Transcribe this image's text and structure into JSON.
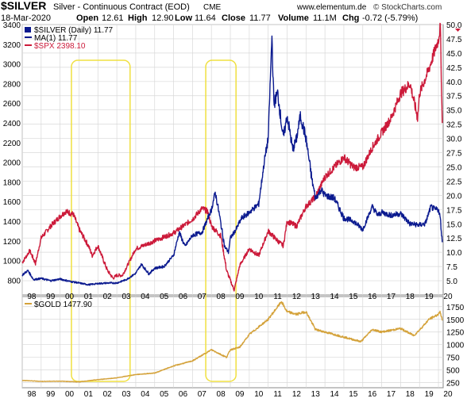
{
  "header": {
    "ticker": "$SILVER",
    "description": "Silver - Continuous Contract (EOD)",
    "exchange": "CME",
    "source": "www.elementum.de",
    "provider": "© StockCharts.com",
    "date": "18-Mar-2020",
    "quote": {
      "open_label": "Open",
      "open": "12.61",
      "high_label": "High",
      "high": "12.90",
      "low_label": "Low",
      "low": "11.64",
      "close_label": "Close",
      "close": "11.77",
      "volume_label": "Volume",
      "volume": "11.1M",
      "chg_label": "Chg",
      "chg": "-0.72 (-5.79%)"
    }
  },
  "colors": {
    "silver": "#0b1a8f",
    "spx": "#cc1a3a",
    "gold": "#d4a23a",
    "highlight": "#f0e040",
    "grid": "#d8d8d8",
    "text": "#000000"
  },
  "chart_data": [
    {
      "type": "line",
      "legend": [
        {
          "label": "$SILVER (Daily) 11.77",
          "color": "#0b1a8f"
        },
        {
          "label": "MA(1) 11.77",
          "color": "#0b1a8f"
        },
        {
          "label": "$SPX 2398.10",
          "color": "#cc1a3a"
        }
      ],
      "legend_placement": "top-left",
      "x_ticks": [
        "98",
        "99",
        "00",
        "01",
        "02",
        "03",
        "04",
        "05",
        "06",
        "07",
        "08",
        "09",
        "10",
        "11",
        "12",
        "13",
        "14",
        "15",
        "16",
        "17",
        "18",
        "19",
        "20"
      ],
      "left_axis": {
        "ticks": [
          800,
          1000,
          1200,
          1400,
          1600,
          1800,
          2000,
          2200,
          2400,
          2600,
          2800,
          3000,
          3200,
          3400
        ],
        "range": [
          650,
          3400
        ]
      },
      "right_axis": {
        "ticks": [
          5.0,
          7.5,
          10.0,
          12.5,
          15.0,
          17.5,
          20.0,
          22.5,
          25.0,
          27.5,
          30.0,
          32.5,
          35.0,
          37.5,
          40.0,
          42.5,
          45.0,
          47.5,
          50.0
        ],
        "range": [
          2.5,
          50.0
        ]
      },
      "grid": true,
      "series": [
        {
          "name": "$SILVER",
          "axis": "right",
          "x": [
            1998,
            1998.3,
            1998.6,
            1999,
            1999.5,
            2000,
            2000.5,
            2001,
            2001.5,
            2002,
            2002.5,
            2003,
            2003.5,
            2004,
            2004.3,
            2004.7,
            2005,
            2005.5,
            2006,
            2006.3,
            2006.6,
            2007,
            2007.5,
            2008,
            2008.2,
            2008.4,
            2008.7,
            2008.9,
            2009,
            2009.3,
            2009.6,
            2010,
            2010.5,
            2010.8,
            2011,
            2011.2,
            2011.3,
            2011.5,
            2011.8,
            2012,
            2012.3,
            2012.5,
            2012.7,
            2013,
            2013.3,
            2013.5,
            2013.8,
            2014,
            2014.5,
            2015,
            2015.5,
            2016,
            2016.5,
            2016.8,
            2017,
            2017.5,
            2018,
            2018.5,
            2019,
            2019.3,
            2019.6,
            2019.8,
            2020,
            2020.1,
            2020.2
          ],
          "values": [
            6.0,
            6.8,
            5.2,
            5.4,
            5.0,
            5.3,
            4.9,
            4.6,
            4.3,
            4.5,
            4.6,
            4.6,
            5.2,
            6.3,
            7.9,
            6.2,
            7.2,
            7.5,
            9.5,
            13.5,
            11.0,
            13.0,
            13.5,
            17.5,
            20.5,
            17.0,
            11.0,
            10.0,
            12.5,
            14.0,
            16.0,
            17.0,
            18.5,
            26.0,
            30.0,
            48.0,
            36.0,
            38.0,
            30.0,
            34.0,
            28.0,
            30.0,
            34.0,
            30.0,
            23.0,
            19.5,
            21.0,
            20.0,
            19.5,
            16.0,
            15.5,
            14.0,
            18.0,
            16.5,
            17.0,
            16.5,
            16.8,
            15.0,
            14.8,
            15.0,
            18.0,
            17.5,
            17.5,
            16.0,
            11.77
          ]
        },
        {
          "name": "$SPX",
          "axis": "left",
          "x": [
            1998,
            1998.4,
            1998.7,
            1999,
            1999.5,
            2000,
            2000.3,
            2000.7,
            2001,
            2001.5,
            2001.7,
            2002,
            2002.5,
            2002.8,
            2003,
            2003.3,
            2004,
            2005,
            2006,
            2007,
            2007.5,
            2007.8,
            2008,
            2008.5,
            2008.8,
            2009,
            2009.2,
            2009.5,
            2010,
            2010.5,
            2011,
            2011.5,
            2011.8,
            2012,
            2012.5,
            2013,
            2013.5,
            2014,
            2014.5,
            2015,
            2015.5,
            2016,
            2016.5,
            2017,
            2017.5,
            2018,
            2018.5,
            2018.9,
            2019,
            2019.5,
            2020,
            2020.1,
            2020.15,
            2020.2
          ],
          "values": [
            980,
            1100,
            970,
            1230,
            1350,
            1450,
            1500,
            1470,
            1320,
            1150,
            1050,
            1150,
            900,
            820,
            850,
            850,
            1120,
            1200,
            1280,
            1420,
            1530,
            1500,
            1350,
            1250,
            900,
            800,
            700,
            950,
            1120,
            1050,
            1300,
            1200,
            1150,
            1400,
            1350,
            1550,
            1650,
            1850,
            1950,
            2050,
            1950,
            1950,
            2150,
            2300,
            2450,
            2700,
            2800,
            2450,
            2700,
            2950,
            3250,
            3380,
            2900,
            2398.1
          ]
        }
      ]
    },
    {
      "type": "line",
      "legend": [
        {
          "label": "$GOLD 1477.90",
          "color": "#d4a23a"
        }
      ],
      "legend_placement": "top-left",
      "x_ticks": [
        "98",
        "99",
        "00",
        "01",
        "02",
        "03",
        "04",
        "05",
        "06",
        "07",
        "08",
        "09",
        "10",
        "11",
        "12",
        "13",
        "14",
        "15",
        "16",
        "17",
        "18",
        "19",
        "20"
      ],
      "right_axis": {
        "ticks": [
          250,
          500,
          750,
          1000,
          1250,
          1500,
          1750
        ],
        "range": [
          150,
          1950
        ]
      },
      "grid": true,
      "series": [
        {
          "name": "$GOLD",
          "axis": "right",
          "x": [
            1998,
            1999,
            2000,
            2001,
            2002,
            2003,
            2004,
            2005,
            2006,
            2007,
            2008,
            2008.8,
            2009,
            2009.5,
            2010,
            2011,
            2011.7,
            2012,
            2012.5,
            2013,
            2013.5,
            2014,
            2015,
            2015.9,
            2016.5,
            2017,
            2018,
            2018.7,
            2019,
            2019.5,
            2020,
            2020.1,
            2020.2
          ],
          "values": [
            295,
            275,
            280,
            265,
            310,
            345,
            410,
            440,
            580,
            680,
            900,
            750,
            900,
            950,
            1200,
            1500,
            1850,
            1650,
            1600,
            1650,
            1300,
            1250,
            1150,
            1060,
            1300,
            1250,
            1320,
            1180,
            1290,
            1500,
            1600,
            1650,
            1477.9
          ]
        }
      ]
    }
  ],
  "annotations": [
    {
      "label": "",
      "x_from": 2000.6,
      "x_to": 2003.7,
      "panel": "both"
    },
    {
      "label": "",
      "x_from": 2007.7,
      "x_to": 2009.3,
      "panel": "both"
    }
  ]
}
